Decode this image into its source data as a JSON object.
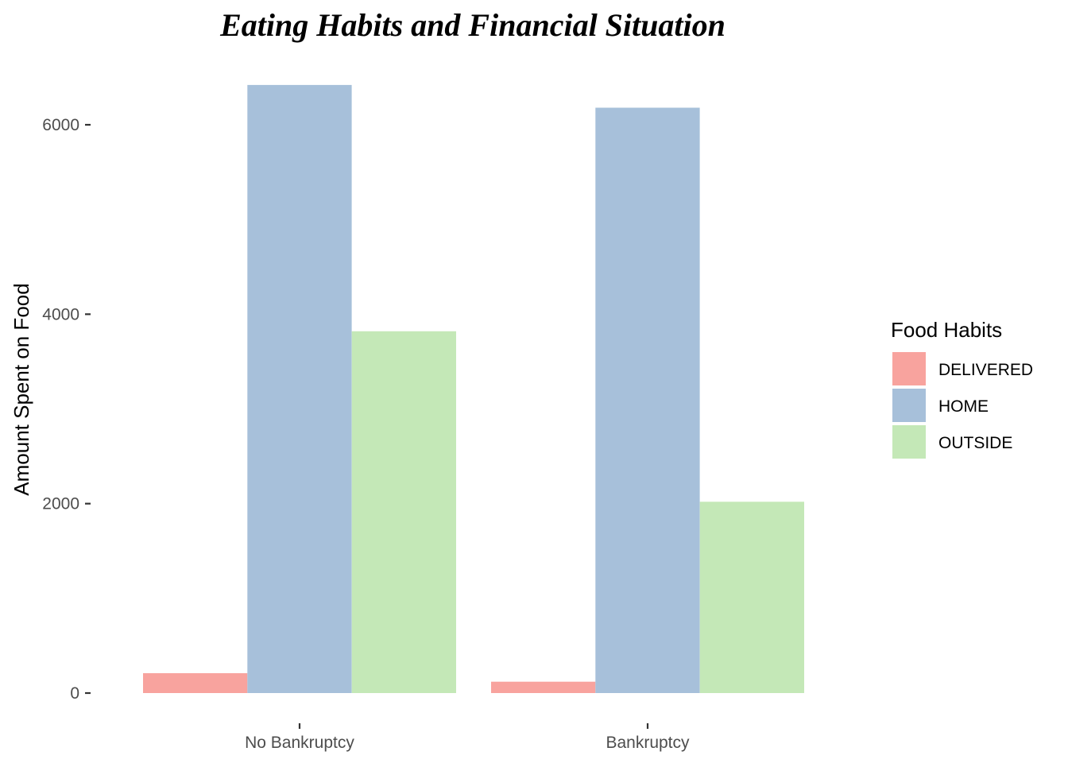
{
  "chart_data": {
    "type": "bar",
    "title": "Eating Habits and Financial Situation",
    "xlabel": "",
    "ylabel": "Amount Spent on Food",
    "categories": [
      "No Bankruptcy",
      "Bankruptcy"
    ],
    "series": [
      {
        "name": "DELIVERED",
        "values": [
          210,
          120
        ],
        "color": "#f8a39e"
      },
      {
        "name": "HOME",
        "values": [
          6420,
          6180
        ],
        "color": "#a7c0da"
      },
      {
        "name": "OUTSIDE",
        "values": [
          3820,
          2020
        ],
        "color": "#c4e8b7"
      }
    ],
    "ylim": [
      0,
      6420
    ],
    "yticks": [
      0,
      2000,
      4000,
      6000
    ],
    "ytick_labels": [
      "0",
      "2000",
      "4000",
      "6000"
    ],
    "grid": false,
    "legend": {
      "title": "Food Habits",
      "placement": "right"
    }
  }
}
